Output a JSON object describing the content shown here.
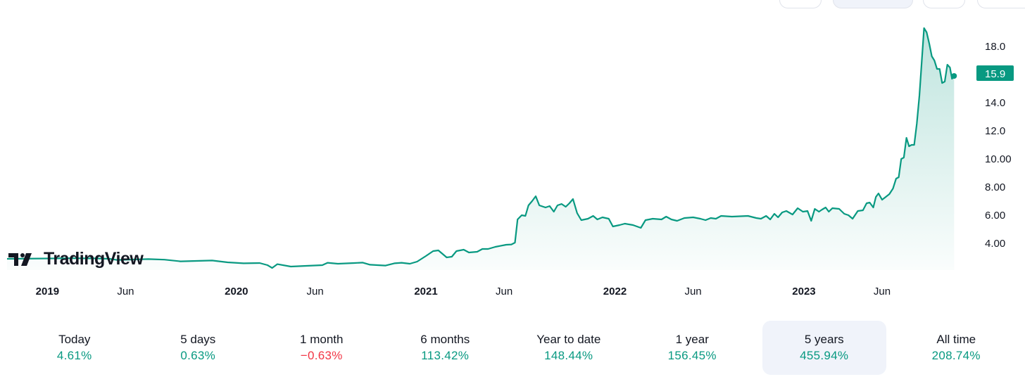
{
  "logo": {
    "text": "TradingView"
  },
  "price_badge": {
    "text": "15.9",
    "color": "#089981"
  },
  "colors": {
    "line": "#089981",
    "negative": "#f23645",
    "selected_bg": "#f0f3fa"
  },
  "periods": [
    {
      "label": "Today",
      "value": "4.61%",
      "negative": false,
      "selected": false
    },
    {
      "label": "5 days",
      "value": "0.63%",
      "negative": false,
      "selected": false
    },
    {
      "label": "1 month",
      "value": "−0.63%",
      "negative": true,
      "selected": false
    },
    {
      "label": "6 months",
      "value": "113.42%",
      "negative": false,
      "selected": false
    },
    {
      "label": "Year to date",
      "value": "148.44%",
      "negative": false,
      "selected": false
    },
    {
      "label": "1 year",
      "value": "156.45%",
      "negative": false,
      "selected": false
    },
    {
      "label": "5 years",
      "value": "455.94%",
      "negative": false,
      "selected": true
    },
    {
      "label": "All time",
      "value": "208.74%",
      "negative": false,
      "selected": false
    }
  ],
  "chart_data": {
    "type": "area",
    "title": "",
    "xlabel": "",
    "ylabel": "",
    "x_ticks": [
      {
        "date": "2019-01-01",
        "label": "2019",
        "bold": true
      },
      {
        "date": "2019-06-01",
        "label": "Jun",
        "bold": false
      },
      {
        "date": "2020-01-01",
        "label": "2020",
        "bold": true
      },
      {
        "date": "2020-06-01",
        "label": "Jun",
        "bold": false
      },
      {
        "date": "2021-01-01",
        "label": "2021",
        "bold": true
      },
      {
        "date": "2021-06-01",
        "label": "Jun",
        "bold": false
      },
      {
        "date": "2022-01-01",
        "label": "2022",
        "bold": true
      },
      {
        "date": "2022-06-01",
        "label": "Jun",
        "bold": false
      },
      {
        "date": "2023-01-01",
        "label": "2023",
        "bold": true
      },
      {
        "date": "2023-06-01",
        "label": "Jun",
        "bold": false
      }
    ],
    "y_ticks": [
      {
        "value": 4,
        "label": "4.00"
      },
      {
        "value": 6,
        "label": "6.00"
      },
      {
        "value": 8,
        "label": "8.00"
      },
      {
        "value": 10,
        "label": "10.00"
      },
      {
        "value": 12,
        "label": "12.0"
      },
      {
        "value": 14,
        "label": "14.0"
      },
      {
        "value": 18,
        "label": "18.0"
      }
    ],
    "ylim": [
      2.1,
      19.6
    ],
    "xlim": [
      "2018-10-15",
      "2023-11-22"
    ],
    "series": [
      {
        "points": [
          [
            "2018-10-15",
            2.9
          ],
          [
            "2018-12-15",
            2.92
          ],
          [
            "2019-02-15",
            2.94
          ],
          [
            "2019-04-01",
            2.93
          ],
          [
            "2019-05-01",
            2.9
          ],
          [
            "2019-05-15",
            2.82
          ],
          [
            "2019-06-15",
            2.85
          ],
          [
            "2019-07-15",
            2.88
          ],
          [
            "2019-08-15",
            2.84
          ],
          [
            "2019-09-15",
            2.72
          ],
          [
            "2019-10-15",
            2.75
          ],
          [
            "2019-11-15",
            2.78
          ],
          [
            "2019-12-15",
            2.65
          ],
          [
            "2020-01-15",
            2.58
          ],
          [
            "2020-02-15",
            2.6
          ],
          [
            "2020-03-01",
            2.45
          ],
          [
            "2020-03-10",
            2.25
          ],
          [
            "2020-03-20",
            2.52
          ],
          [
            "2020-04-15",
            2.35
          ],
          [
            "2020-05-15",
            2.4
          ],
          [
            "2020-06-15",
            2.45
          ],
          [
            "2020-06-25",
            2.62
          ],
          [
            "2020-07-15",
            2.55
          ],
          [
            "2020-08-15",
            2.6
          ],
          [
            "2020-09-01",
            2.63
          ],
          [
            "2020-09-15",
            2.48
          ],
          [
            "2020-10-15",
            2.42
          ],
          [
            "2020-11-01",
            2.58
          ],
          [
            "2020-11-15",
            2.62
          ],
          [
            "2020-12-01",
            2.55
          ],
          [
            "2020-12-15",
            2.7
          ],
          [
            "2021-01-01",
            3.1
          ],
          [
            "2021-01-15",
            3.45
          ],
          [
            "2021-01-25",
            3.5
          ],
          [
            "2021-02-10",
            3.0
          ],
          [
            "2021-02-20",
            3.05
          ],
          [
            "2021-03-01",
            3.45
          ],
          [
            "2021-03-15",
            3.55
          ],
          [
            "2021-03-25",
            3.35
          ],
          [
            "2021-04-10",
            3.4
          ],
          [
            "2021-04-20",
            3.6
          ],
          [
            "2021-05-01",
            3.6
          ],
          [
            "2021-05-15",
            3.75
          ],
          [
            "2021-05-25",
            3.82
          ],
          [
            "2021-06-05",
            3.9
          ],
          [
            "2021-06-15",
            3.92
          ],
          [
            "2021-06-22",
            4.05
          ],
          [
            "2021-06-27",
            5.7
          ],
          [
            "2021-07-05",
            6.0
          ],
          [
            "2021-07-12",
            5.95
          ],
          [
            "2021-07-18",
            6.7
          ],
          [
            "2021-07-25",
            7.0
          ],
          [
            "2021-08-01",
            7.35
          ],
          [
            "2021-08-08",
            6.7
          ],
          [
            "2021-08-20",
            6.55
          ],
          [
            "2021-08-28",
            6.65
          ],
          [
            "2021-09-05",
            6.25
          ],
          [
            "2021-09-12",
            6.7
          ],
          [
            "2021-09-20",
            6.8
          ],
          [
            "2021-09-28",
            6.6
          ],
          [
            "2021-10-05",
            6.85
          ],
          [
            "2021-10-12",
            7.15
          ],
          [
            "2021-10-20",
            6.15
          ],
          [
            "2021-10-28",
            5.65
          ],
          [
            "2021-11-10",
            5.75
          ],
          [
            "2021-11-20",
            5.95
          ],
          [
            "2021-11-28",
            5.7
          ],
          [
            "2021-12-08",
            5.85
          ],
          [
            "2021-12-20",
            5.75
          ],
          [
            "2021-12-28",
            5.2
          ],
          [
            "2022-01-10",
            5.3
          ],
          [
            "2022-01-20",
            5.4
          ],
          [
            "2022-02-05",
            5.3
          ],
          [
            "2022-02-20",
            5.1
          ],
          [
            "2022-03-01",
            5.65
          ],
          [
            "2022-03-15",
            5.75
          ],
          [
            "2022-04-01",
            5.7
          ],
          [
            "2022-04-10",
            5.9
          ],
          [
            "2022-04-20",
            5.7
          ],
          [
            "2022-05-01",
            5.6
          ],
          [
            "2022-05-15",
            5.8
          ],
          [
            "2022-06-01",
            5.85
          ],
          [
            "2022-06-15",
            5.75
          ],
          [
            "2022-06-25",
            5.65
          ],
          [
            "2022-07-05",
            5.8
          ],
          [
            "2022-07-15",
            5.75
          ],
          [
            "2022-07-25",
            5.95
          ],
          [
            "2022-08-15",
            5.9
          ],
          [
            "2022-09-15",
            5.95
          ],
          [
            "2022-10-01",
            5.8
          ],
          [
            "2022-10-10",
            5.75
          ],
          [
            "2022-10-20",
            5.95
          ],
          [
            "2022-10-28",
            5.7
          ],
          [
            "2022-11-05",
            6.1
          ],
          [
            "2022-11-12",
            5.85
          ],
          [
            "2022-11-20",
            6.2
          ],
          [
            "2022-11-28",
            6.3
          ],
          [
            "2022-12-10",
            6.05
          ],
          [
            "2022-12-20",
            6.5
          ],
          [
            "2022-12-30",
            6.25
          ],
          [
            "2023-01-08",
            6.3
          ],
          [
            "2023-01-15",
            5.6
          ],
          [
            "2023-01-22",
            6.45
          ],
          [
            "2023-01-30",
            6.25
          ],
          [
            "2023-02-05",
            6.4
          ],
          [
            "2023-02-12",
            6.55
          ],
          [
            "2023-02-18",
            6.25
          ],
          [
            "2023-02-25",
            6.5
          ],
          [
            "2023-03-10",
            6.45
          ],
          [
            "2023-03-20",
            6.1
          ],
          [
            "2023-03-28",
            6.0
          ],
          [
            "2023-04-05",
            5.75
          ],
          [
            "2023-04-15",
            6.3
          ],
          [
            "2023-04-25",
            6.35
          ],
          [
            "2023-05-02",
            6.85
          ],
          [
            "2023-05-08",
            6.9
          ],
          [
            "2023-05-15",
            6.55
          ],
          [
            "2023-05-20",
            7.3
          ],
          [
            "2023-05-25",
            7.55
          ],
          [
            "2023-06-01",
            7.1
          ],
          [
            "2023-06-08",
            7.3
          ],
          [
            "2023-06-15",
            7.5
          ],
          [
            "2023-06-22",
            7.9
          ],
          [
            "2023-06-28",
            8.6
          ],
          [
            "2023-07-03",
            8.7
          ],
          [
            "2023-07-08",
            10.0
          ],
          [
            "2023-07-13",
            10.1
          ],
          [
            "2023-07-18",
            11.5
          ],
          [
            "2023-07-23",
            10.9
          ],
          [
            "2023-07-28",
            11.0
          ],
          [
            "2023-08-02",
            11.0
          ],
          [
            "2023-08-07",
            12.5
          ],
          [
            "2023-08-12",
            14.5
          ],
          [
            "2023-08-17",
            17.2
          ],
          [
            "2023-08-21",
            19.3
          ],
          [
            "2023-08-26",
            19.0
          ],
          [
            "2023-08-31",
            18.2
          ],
          [
            "2023-09-05",
            17.3
          ],
          [
            "2023-09-10",
            17.0
          ],
          [
            "2023-09-15",
            16.4
          ],
          [
            "2023-09-20",
            16.4
          ],
          [
            "2023-09-25",
            15.4
          ],
          [
            "2023-09-30",
            15.5
          ],
          [
            "2023-10-05",
            16.7
          ],
          [
            "2023-10-10",
            16.5
          ],
          [
            "2023-10-14",
            15.7
          ],
          [
            "2023-10-18",
            15.9
          ]
        ]
      }
    ]
  }
}
